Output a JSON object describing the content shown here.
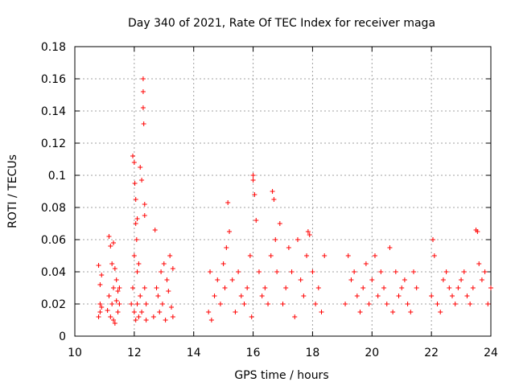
{
  "chart_data": {
    "type": "scatter",
    "title": "Day 340 of 2021, Rate Of TEC Index for receiver maga",
    "xlabel": "GPS time / hours",
    "ylabel": "ROTI / TECUs",
    "xlim": [
      10,
      24
    ],
    "ylim": [
      0,
      0.18
    ],
    "x_ticks": [
      "10",
      "12",
      "14",
      "16",
      "18",
      "20",
      "22",
      "24"
    ],
    "y_ticks": [
      "0",
      "0.02",
      "0.04",
      "0.06",
      "0.08",
      "0.1",
      "0.12",
      "0.14",
      "0.16",
      "0.18"
    ],
    "grid": true,
    "marker": "+",
    "color": "#ff0000",
    "series": [
      {
        "x": [
          10.8,
          10.8,
          10.85,
          10.85,
          10.85,
          10.9,
          10.9,
          11.1,
          11.15,
          11.15,
          11.2,
          11.2,
          11.25,
          11.25,
          11.3,
          11.3,
          11.3,
          11.35,
          11.35,
          11.4,
          11.4,
          11.45,
          11.45,
          11.5,
          11.5,
          11.9,
          11.95,
          11.95,
          12.0,
          12.0,
          12.0,
          12.02,
          12.05,
          12.05,
          12.05,
          12.08,
          12.1,
          12.1,
          12.1,
          12.15,
          12.15,
          12.2,
          12.2,
          12.25,
          12.25,
          12.3,
          12.3,
          12.3,
          12.32,
          12.35,
          12.35,
          12.35,
          12.4,
          12.4,
          12.65,
          12.7,
          12.75,
          12.8,
          12.85,
          12.9,
          12.95,
          13.0,
          13.05,
          13.1,
          13.15,
          13.2,
          13.25,
          13.3,
          13.3,
          14.5,
          14.55,
          14.6,
          14.7,
          14.8,
          14.9,
          15.0,
          15.05,
          15.1,
          15.15,
          15.2,
          15.3,
          15.4,
          15.5,
          15.6,
          15.7,
          15.8,
          15.9,
          15.95,
          16.0,
          16.0,
          16.05,
          16.1,
          16.2,
          16.3,
          16.4,
          16.5,
          16.6,
          16.65,
          16.7,
          16.75,
          16.8,
          16.9,
          17.0,
          17.1,
          17.2,
          17.3,
          17.4,
          17.5,
          17.6,
          17.7,
          17.8,
          17.85,
          17.9,
          18.0,
          18.1,
          18.2,
          18.3,
          18.4,
          19.1,
          19.2,
          19.3,
          19.4,
          19.5,
          19.6,
          19.7,
          19.8,
          19.9,
          20.0,
          20.1,
          20.2,
          20.3,
          20.4,
          20.5,
          20.6,
          20.7,
          20.8,
          20.9,
          21.0,
          21.1,
          21.2,
          21.3,
          21.4,
          21.5,
          22.0,
          22.05,
          22.1,
          22.2,
          22.3,
          22.4,
          22.5,
          22.6,
          22.7,
          22.8,
          22.9,
          23.0,
          23.1,
          23.2,
          23.3,
          23.4,
          23.5,
          23.55,
          23.6,
          23.7,
          23.8,
          23.9,
          24.0
        ],
        "y": [
          0.044,
          0.012,
          0.032,
          0.02,
          0.015,
          0.038,
          0.018,
          0.016,
          0.062,
          0.025,
          0.056,
          0.012,
          0.045,
          0.02,
          0.03,
          0.01,
          0.058,
          0.008,
          0.042,
          0.022,
          0.035,
          0.015,
          0.028,
          0.03,
          0.02,
          0.02,
          0.112,
          0.03,
          0.108,
          0.05,
          0.015,
          0.095,
          0.085,
          0.07,
          0.01,
          0.06,
          0.073,
          0.04,
          0.02,
          0.045,
          0.012,
          0.105,
          0.025,
          0.097,
          0.015,
          0.16,
          0.152,
          0.142,
          0.132,
          0.082,
          0.075,
          0.03,
          0.02,
          0.01,
          0.012,
          0.066,
          0.03,
          0.025,
          0.015,
          0.04,
          0.02,
          0.045,
          0.01,
          0.035,
          0.028,
          0.05,
          0.018,
          0.042,
          0.012,
          0.015,
          0.04,
          0.01,
          0.025,
          0.035,
          0.02,
          0.045,
          0.03,
          0.055,
          0.083,
          0.065,
          0.035,
          0.015,
          0.04,
          0.025,
          0.02,
          0.03,
          0.05,
          0.012,
          0.1,
          0.097,
          0.088,
          0.072,
          0.04,
          0.025,
          0.03,
          0.02,
          0.05,
          0.09,
          0.085,
          0.06,
          0.04,
          0.07,
          0.02,
          0.03,
          0.055,
          0.04,
          0.012,
          0.06,
          0.035,
          0.025,
          0.05,
          0.065,
          0.063,
          0.04,
          0.02,
          0.03,
          0.015,
          0.05,
          0.02,
          0.05,
          0.035,
          0.04,
          0.025,
          0.015,
          0.03,
          0.045,
          0.02,
          0.035,
          0.05,
          0.025,
          0.04,
          0.03,
          0.02,
          0.055,
          0.015,
          0.04,
          0.025,
          0.03,
          0.035,
          0.02,
          0.015,
          0.04,
          0.03,
          0.025,
          0.06,
          0.05,
          0.02,
          0.015,
          0.035,
          0.04,
          0.03,
          0.025,
          0.02,
          0.03,
          0.035,
          0.04,
          0.025,
          0.02,
          0.03,
          0.066,
          0.065,
          0.045,
          0.035,
          0.04,
          0.02,
          0.03
        ]
      }
    ]
  }
}
